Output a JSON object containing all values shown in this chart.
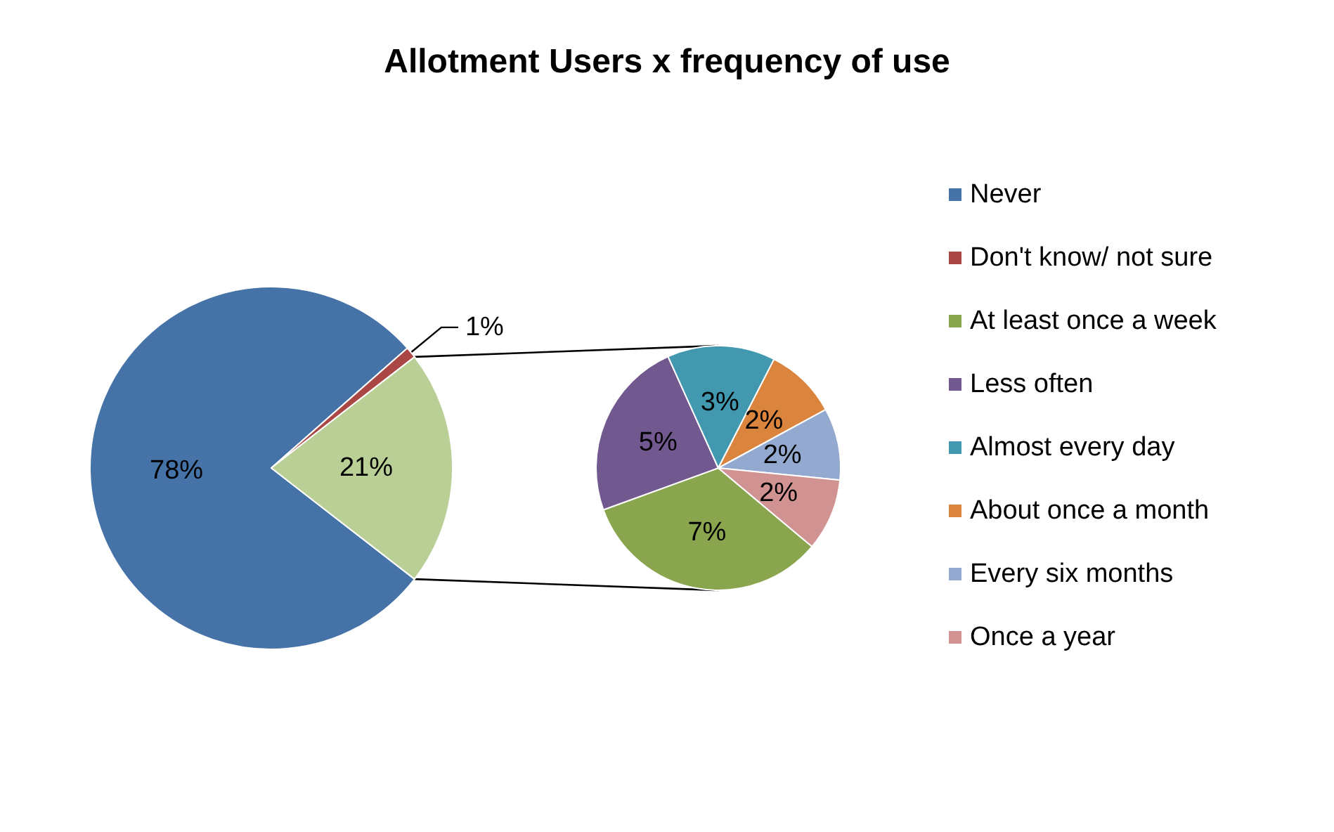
{
  "chart_data": [
    {
      "type": "pie",
      "title": "Allotment Users x frequency of use",
      "categories": [
        "Never",
        "Don't know/ not sure",
        null
      ],
      "values": [
        78,
        1,
        21
      ],
      "colors": [
        "#4572a7",
        "#aa4643",
        "#b9cf96"
      ],
      "value_labels": [
        "78%",
        "1%",
        "21%"
      ],
      "legend": "right"
    },
    {
      "type": "pie",
      "categories": [
        "At least once a week",
        "Less often",
        "Almost every day",
        "About once a month",
        "Every six months",
        "Once a year"
      ],
      "values": [
        7,
        5,
        3,
        2,
        2,
        2
      ],
      "colors": [
        "#89a54e",
        "#71588f",
        "#4198af",
        "#db843d",
        "#93a9cf",
        "#d19392"
      ],
      "value_labels": [
        "7%",
        "5%",
        "3%",
        "2%",
        "2%",
        "2%"
      ],
      "legend": "right"
    }
  ]
}
